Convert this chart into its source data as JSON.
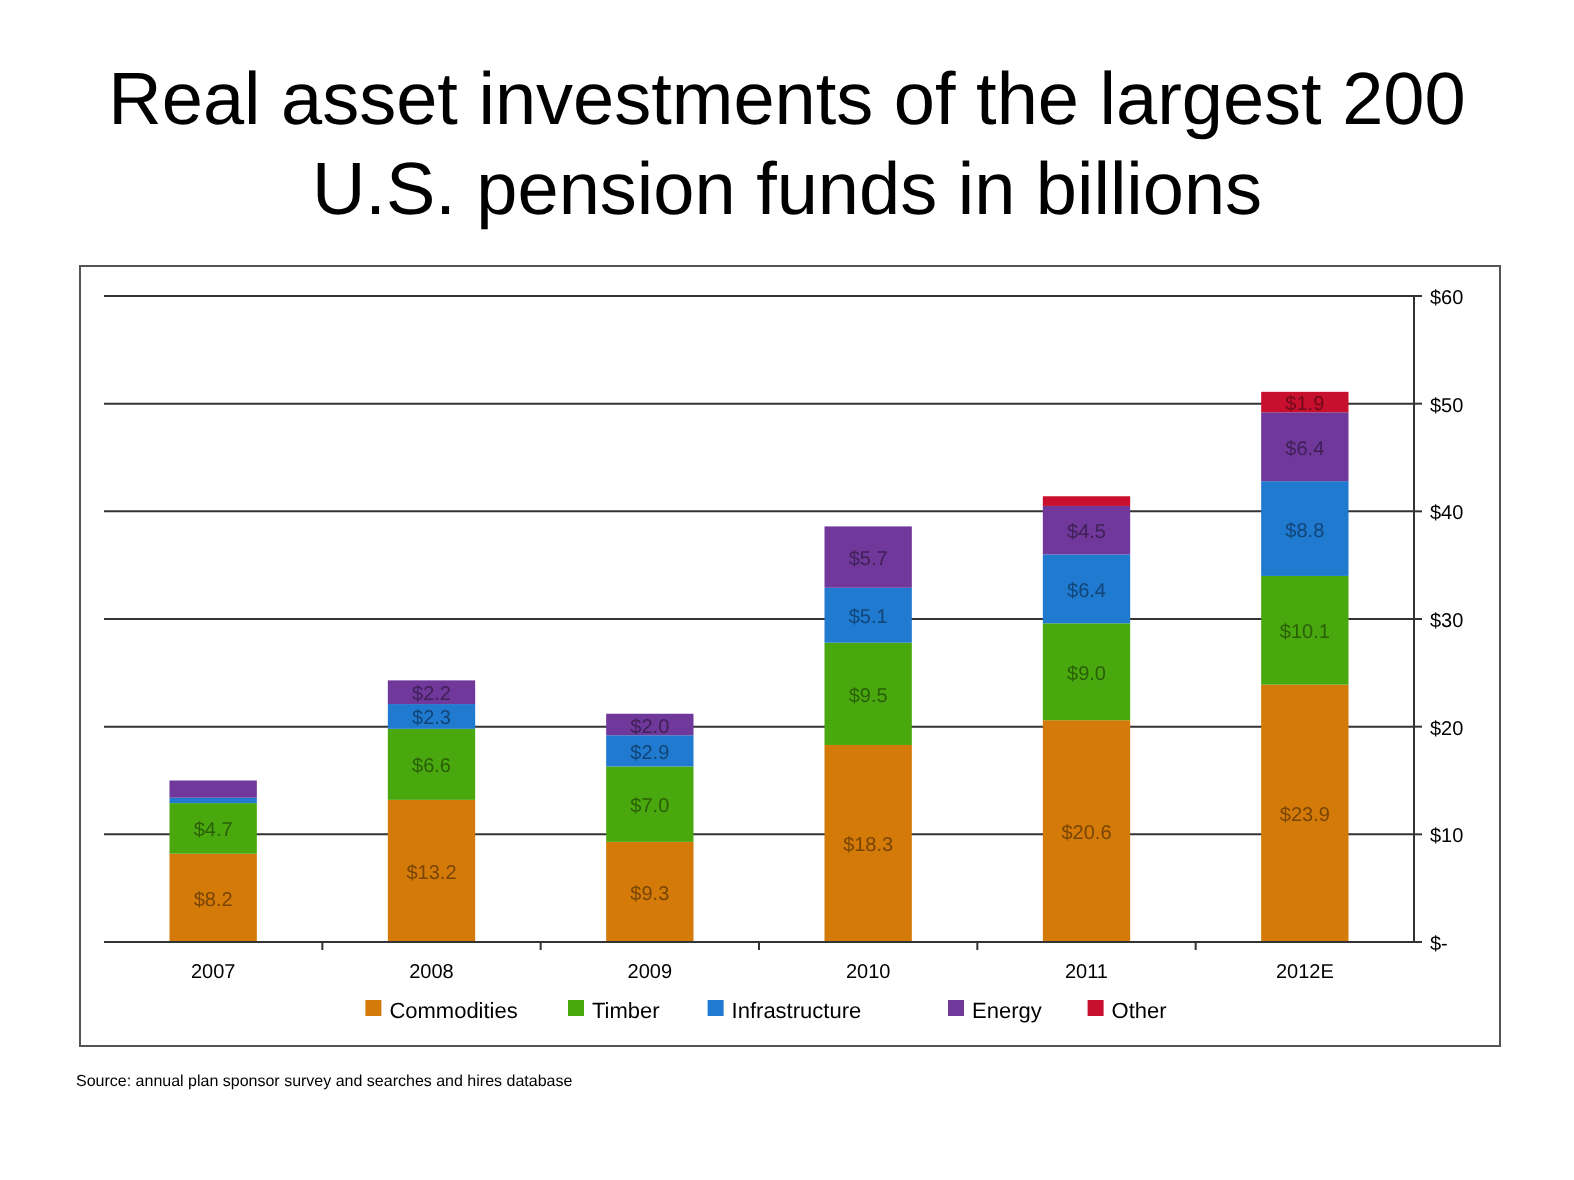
{
  "chart_data": {
    "type": "bar",
    "stacked": true,
    "title": "Real asset investments of the largest 200 U.S. pension funds in billions",
    "categories": [
      "2007",
      "2008",
      "2009",
      "2010",
      "2011",
      "2012E"
    ],
    "series": [
      {
        "name": "Commodities",
        "color": "#d47a08",
        "values": [
          8.2,
          13.2,
          9.3,
          18.3,
          20.6,
          23.9
        ],
        "value_labels": [
          "$8.2",
          "$13.2",
          "$9.3",
          "$18.3",
          "$20.6",
          "$23.9"
        ]
      },
      {
        "name": "Timber",
        "color": "#4aa80f",
        "values": [
          4.7,
          6.6,
          7.0,
          9.5,
          9.0,
          10.1
        ],
        "value_labels": [
          "$4.7",
          "$6.6",
          "$7.0",
          "$9.5",
          "$9.0",
          "$10.1"
        ]
      },
      {
        "name": "Infrastructure",
        "color": "#1f7ad0",
        "values": [
          0.5,
          2.3,
          2.9,
          5.1,
          6.4,
          8.8
        ],
        "value_labels": [
          null,
          "$2.3",
          "$2.9",
          "$5.1",
          "$6.4",
          "$8.8"
        ]
      },
      {
        "name": "Energy",
        "color": "#70389a",
        "values": [
          1.6,
          2.2,
          2.0,
          5.7,
          4.5,
          6.4
        ],
        "value_labels": [
          null,
          "$2.2",
          "$2.0",
          "$5.7",
          "$4.5",
          "$6.4"
        ]
      },
      {
        "name": "Other",
        "color": "#c8102e",
        "values": [
          null,
          null,
          null,
          null,
          0.9,
          1.9
        ],
        "value_labels": [
          null,
          null,
          null,
          null,
          null,
          "$1.9"
        ]
      }
    ],
    "ylim": [
      0,
      60
    ],
    "yticks": [
      {
        "value": 0,
        "label": "$-"
      },
      {
        "value": 10,
        "label": "$10"
      },
      {
        "value": 20,
        "label": "$20"
      },
      {
        "value": 30,
        "label": "$30"
      },
      {
        "value": 40,
        "label": "$40"
      },
      {
        "value": 50,
        "label": "$50"
      },
      {
        "value": 60,
        "label": "$60"
      }
    ],
    "grid": "y",
    "legend": "bottom",
    "annotations": [
      "Source: annual plan sponsor survey and searches and hires database"
    ]
  }
}
